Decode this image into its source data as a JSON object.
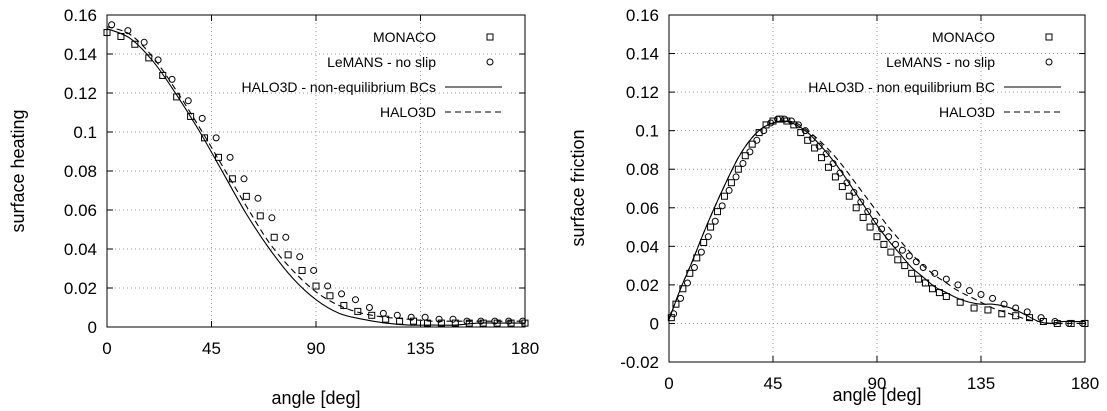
{
  "chart_data": [
    {
      "type": "line",
      "title": "",
      "xlabel": "angle [deg]",
      "ylabel": "surface heating",
      "xlim": [
        0,
        180
      ],
      "ylim": [
        0,
        0.16
      ],
      "xticks": [
        0,
        45,
        90,
        135,
        180
      ],
      "yticks": [
        0,
        0.02,
        0.04,
        0.06,
        0.08,
        0.1,
        0.12,
        0.14,
        0.16
      ],
      "xtick_labels": [
        "0",
        "45",
        "90",
        "135",
        "180"
      ],
      "ytick_labels": [
        "0",
        "0.02",
        "0.04",
        "0.06",
        "0.08",
        "0.1",
        "0.12",
        "0.14",
        "0.16"
      ],
      "grid": true,
      "legend_position": "top-right",
      "series": [
        {
          "name": "MONACO",
          "style": "square-markers",
          "x": [
            0,
            6,
            12,
            18,
            24,
            30,
            36,
            42,
            48,
            54,
            60,
            66,
            72,
            78,
            84,
            90,
            96,
            102,
            108,
            114,
            120,
            126,
            132,
            138,
            144,
            150,
            156,
            162,
            168,
            174,
            180
          ],
          "y": [
            0.151,
            0.149,
            0.145,
            0.138,
            0.129,
            0.118,
            0.108,
            0.097,
            0.087,
            0.076,
            0.067,
            0.057,
            0.046,
            0.037,
            0.029,
            0.021,
            0.016,
            0.011,
            0.008,
            0.006,
            0.004,
            0.003,
            0.003,
            0.002,
            0.002,
            0.002,
            0.002,
            0.002,
            0.002,
            0.002,
            0.002
          ]
        },
        {
          "name": "LeMANS - no slip",
          "style": "circle-markers",
          "x": [
            2,
            9,
            16,
            22,
            28,
            35,
            41,
            47,
            53,
            59,
            65,
            71,
            77,
            83,
            89,
            95,
            101,
            107,
            113,
            119,
            125,
            131,
            137,
            143,
            149,
            155,
            161,
            167,
            173,
            179
          ],
          "y": [
            0.155,
            0.152,
            0.146,
            0.137,
            0.127,
            0.116,
            0.107,
            0.097,
            0.087,
            0.076,
            0.066,
            0.056,
            0.046,
            0.036,
            0.029,
            0.021,
            0.017,
            0.014,
            0.01,
            0.007,
            0.006,
            0.005,
            0.005,
            0.004,
            0.004,
            0.003,
            0.003,
            0.003,
            0.003,
            0.003
          ]
        },
        {
          "name": "HALO3D - non-equilibrium BCs",
          "style": "solid",
          "x": [
            0,
            10,
            20,
            30,
            40,
            50,
            60,
            70,
            80,
            90,
            100,
            110,
            120,
            130,
            140,
            150,
            160,
            170,
            180
          ],
          "y": [
            0.153,
            0.148,
            0.136,
            0.119,
            0.1,
            0.079,
            0.058,
            0.04,
            0.025,
            0.014,
            0.007,
            0.004,
            0.002,
            0.001,
            0.001,
            0.001,
            0.002,
            0.002,
            0.002
          ]
        },
        {
          "name": "HALO3D",
          "style": "dashed",
          "x": [
            0,
            10,
            20,
            30,
            40,
            50,
            60,
            70,
            80,
            90,
            100,
            110,
            120,
            130,
            140,
            150,
            160,
            170,
            180
          ],
          "y": [
            0.154,
            0.15,
            0.138,
            0.121,
            0.102,
            0.082,
            0.062,
            0.043,
            0.029,
            0.018,
            0.011,
            0.007,
            0.005,
            0.004,
            0.003,
            0.003,
            0.003,
            0.003,
            0.003
          ]
        }
      ]
    },
    {
      "type": "line",
      "title": "",
      "xlabel": "angle [deg]",
      "ylabel": "surface friction",
      "xlim": [
        0,
        180
      ],
      "ylim": [
        -0.02,
        0.16
      ],
      "xticks": [
        0,
        45,
        90,
        135,
        180
      ],
      "yticks": [
        -0.02,
        0,
        0.02,
        0.04,
        0.06,
        0.08,
        0.1,
        0.12,
        0.14,
        0.16
      ],
      "xtick_labels": [
        "0",
        "45",
        "90",
        "135",
        "180"
      ],
      "ytick_labels": [
        "-0.02",
        "0",
        "0.02",
        "0.04",
        "0.06",
        "0.08",
        "0.1",
        "0.12",
        "0.14",
        "0.16"
      ],
      "grid": true,
      "legend_position": "top-right",
      "series": [
        {
          "name": "MONACO",
          "style": "square-markers",
          "x": [
            1,
            3,
            6,
            9,
            12,
            15,
            18,
            21,
            24,
            27,
            30,
            33,
            36,
            39,
            42,
            45,
            48,
            51,
            54,
            57,
            60,
            63,
            66,
            69,
            72,
            75,
            78,
            81,
            84,
            87,
            90,
            93,
            96,
            99,
            102,
            105,
            108,
            111,
            114,
            117,
            120,
            126,
            132,
            138,
            144,
            150,
            156,
            162,
            168,
            174,
            180
          ],
          "y": [
            0.003,
            0.01,
            0.018,
            0.026,
            0.034,
            0.042,
            0.05,
            0.058,
            0.066,
            0.073,
            0.08,
            0.087,
            0.093,
            0.099,
            0.103,
            0.105,
            0.106,
            0.105,
            0.103,
            0.099,
            0.095,
            0.091,
            0.086,
            0.081,
            0.076,
            0.071,
            0.066,
            0.06,
            0.055,
            0.05,
            0.045,
            0.041,
            0.037,
            0.033,
            0.03,
            0.026,
            0.023,
            0.021,
            0.018,
            0.016,
            0.014,
            0.011,
            0.008,
            0.007,
            0.005,
            0.004,
            0.003,
            0.001,
            0.0,
            0.0,
            0.0
          ]
        },
        {
          "name": "LeMANS - no slip",
          "style": "circle-markers",
          "x": [
            2,
            5,
            8,
            11,
            14,
            17,
            20,
            23,
            26,
            29,
            32,
            35,
            38,
            41,
            44,
            47,
            50,
            53,
            56,
            59,
            62,
            65,
            68,
            71,
            74,
            77,
            80,
            83,
            86,
            89,
            92,
            95,
            98,
            101,
            104,
            107,
            110,
            115,
            120,
            125,
            130,
            135,
            140,
            145,
            150,
            155,
            161,
            167,
            173,
            179
          ],
          "y": [
            0.005,
            0.013,
            0.021,
            0.029,
            0.037,
            0.045,
            0.053,
            0.061,
            0.069,
            0.076,
            0.083,
            0.089,
            0.095,
            0.1,
            0.104,
            0.106,
            0.106,
            0.105,
            0.103,
            0.1,
            0.096,
            0.092,
            0.088,
            0.083,
            0.078,
            0.073,
            0.068,
            0.063,
            0.058,
            0.053,
            0.049,
            0.045,
            0.041,
            0.038,
            0.035,
            0.032,
            0.029,
            0.026,
            0.023,
            0.02,
            0.017,
            0.015,
            0.013,
            0.01,
            0.008,
            0.006,
            0.003,
            0.001,
            0.0,
            0.0
          ]
        },
        {
          "name": "HALO3D - non equilibrium BC",
          "style": "solid",
          "x": [
            0,
            5,
            10,
            15,
            20,
            25,
            30,
            35,
            40,
            45,
            50,
            55,
            60,
            65,
            70,
            75,
            80,
            85,
            90,
            95,
            100,
            105,
            110,
            115,
            120,
            125,
            130,
            135,
            140,
            145,
            150,
            155,
            160,
            165,
            170,
            175,
            180
          ],
          "y": [
            0.002,
            0.018,
            0.032,
            0.047,
            0.061,
            0.074,
            0.086,
            0.095,
            0.101,
            0.104,
            0.105,
            0.103,
            0.099,
            0.093,
            0.086,
            0.078,
            0.069,
            0.06,
            0.051,
            0.043,
            0.036,
            0.029,
            0.024,
            0.019,
            0.016,
            0.013,
            0.011,
            0.01,
            0.01,
            0.009,
            0.007,
            0.004,
            0.001,
            0.0,
            0.001,
            0.001,
            0.001
          ]
        },
        {
          "name": "HALO3D",
          "style": "dashed",
          "x": [
            0,
            5,
            10,
            15,
            20,
            25,
            30,
            35,
            40,
            45,
            50,
            55,
            60,
            65,
            70,
            75,
            80,
            85,
            90,
            95,
            100,
            105,
            110,
            115,
            120,
            125,
            130,
            135,
            140,
            145,
            150,
            155,
            160,
            165,
            170,
            175,
            180
          ],
          "y": [
            0.002,
            0.018,
            0.032,
            0.047,
            0.061,
            0.074,
            0.086,
            0.095,
            0.101,
            0.104,
            0.105,
            0.104,
            0.1,
            0.095,
            0.089,
            0.082,
            0.074,
            0.066,
            0.058,
            0.05,
            0.043,
            0.036,
            0.03,
            0.025,
            0.021,
            0.017,
            0.014,
            0.011,
            0.008,
            0.006,
            0.004,
            0.002,
            0.001,
            0.0,
            0.0,
            0.0,
            0.0
          ]
        }
      ]
    }
  ]
}
